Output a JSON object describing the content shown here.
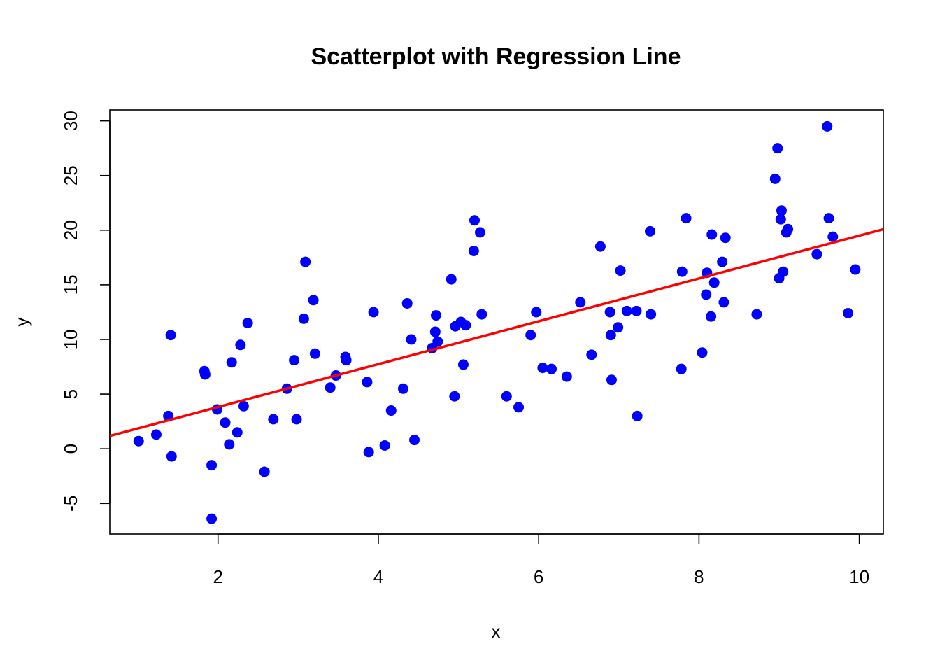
{
  "chart_data": {
    "type": "scatter",
    "title": "Scatterplot with Regression Line",
    "xlabel": "x",
    "ylabel": "y",
    "xlim": [
      0.65,
      10.3
    ],
    "ylim": [
      -7.8,
      31.0
    ],
    "x_ticks": [
      2,
      4,
      6,
      8,
      10
    ],
    "y_ticks": [
      -5,
      0,
      5,
      10,
      15,
      20,
      25,
      30
    ],
    "x_tick_labels": [
      "2",
      "4",
      "6",
      "8",
      "10"
    ],
    "y_tick_labels": [
      "-5",
      "0",
      "5",
      "10",
      "15",
      "20",
      "25",
      "30"
    ],
    "grid": false,
    "point_color": "#0000ff",
    "line_color": "#ff0000",
    "regression_line": {
      "intercept": -0.1,
      "slope": 1.96
    },
    "points": [
      [
        1.01,
        0.7
      ],
      [
        1.23,
        1.3
      ],
      [
        1.38,
        3.0
      ],
      [
        1.41,
        10.4
      ],
      [
        1.42,
        -0.7
      ],
      [
        1.83,
        7.1
      ],
      [
        1.84,
        6.8
      ],
      [
        1.92,
        -1.5
      ],
      [
        1.92,
        -6.4
      ],
      [
        1.99,
        3.6
      ],
      [
        2.09,
        2.4
      ],
      [
        2.14,
        0.4
      ],
      [
        2.17,
        7.9
      ],
      [
        2.24,
        1.5
      ],
      [
        2.28,
        9.5
      ],
      [
        2.32,
        3.9
      ],
      [
        2.37,
        11.5
      ],
      [
        2.58,
        -2.1
      ],
      [
        2.69,
        2.7
      ],
      [
        2.86,
        5.5
      ],
      [
        2.95,
        8.1
      ],
      [
        2.98,
        2.7
      ],
      [
        3.07,
        11.9
      ],
      [
        3.09,
        17.1
      ],
      [
        3.19,
        13.6
      ],
      [
        3.21,
        8.7
      ],
      [
        3.4,
        5.6
      ],
      [
        3.47,
        6.7
      ],
      [
        3.59,
        8.4
      ],
      [
        3.6,
        8.1
      ],
      [
        3.86,
        6.1
      ],
      [
        3.88,
        -0.3
      ],
      [
        3.94,
        12.5
      ],
      [
        4.08,
        0.3
      ],
      [
        4.16,
        3.5
      ],
      [
        4.31,
        5.5
      ],
      [
        4.36,
        13.3
      ],
      [
        4.41,
        10.0
      ],
      [
        4.45,
        0.8
      ],
      [
        4.67,
        9.2
      ],
      [
        4.71,
        10.7
      ],
      [
        4.72,
        12.2
      ],
      [
        4.74,
        9.8
      ],
      [
        4.91,
        15.5
      ],
      [
        4.95,
        4.8
      ],
      [
        4.96,
        11.2
      ],
      [
        5.03,
        11.6
      ],
      [
        5.06,
        7.7
      ],
      [
        5.09,
        11.3
      ],
      [
        5.19,
        18.1
      ],
      [
        5.2,
        20.9
      ],
      [
        5.27,
        19.8
      ],
      [
        5.29,
        12.3
      ],
      [
        5.6,
        4.8
      ],
      [
        5.75,
        3.8
      ],
      [
        5.9,
        10.4
      ],
      [
        5.97,
        12.5
      ],
      [
        6.05,
        7.4
      ],
      [
        6.16,
        7.3
      ],
      [
        6.35,
        6.6
      ],
      [
        6.52,
        13.4
      ],
      [
        6.66,
        8.6
      ],
      [
        6.77,
        18.5
      ],
      [
        6.89,
        12.5
      ],
      [
        6.9,
        10.4
      ],
      [
        6.91,
        6.3
      ],
      [
        6.99,
        11.1
      ],
      [
        7.02,
        16.3
      ],
      [
        7.1,
        12.6
      ],
      [
        7.22,
        12.6
      ],
      [
        7.23,
        3.0
      ],
      [
        7.39,
        19.9
      ],
      [
        7.4,
        12.3
      ],
      [
        7.78,
        7.3
      ],
      [
        7.79,
        16.2
      ],
      [
        7.84,
        21.1
      ],
      [
        8.04,
        8.8
      ],
      [
        8.09,
        14.1
      ],
      [
        8.1,
        16.1
      ],
      [
        8.15,
        12.1
      ],
      [
        8.16,
        19.6
      ],
      [
        8.19,
        15.2
      ],
      [
        8.29,
        17.1
      ],
      [
        8.31,
        13.4
      ],
      [
        8.33,
        19.3
      ],
      [
        8.72,
        12.3
      ],
      [
        8.95,
        24.7
      ],
      [
        8.98,
        27.5
      ],
      [
        9.0,
        15.6
      ],
      [
        9.02,
        21.0
      ],
      [
        9.03,
        21.8
      ],
      [
        9.05,
        16.2
      ],
      [
        9.09,
        19.8
      ],
      [
        9.11,
        20.1
      ],
      [
        9.47,
        17.8
      ],
      [
        9.6,
        29.5
      ],
      [
        9.62,
        21.1
      ],
      [
        9.67,
        19.4
      ],
      [
        9.86,
        12.4
      ],
      [
        9.95,
        16.4
      ]
    ]
  }
}
